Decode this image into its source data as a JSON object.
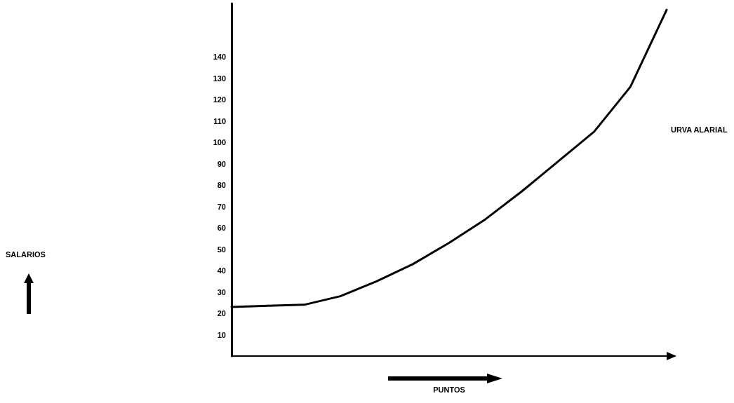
{
  "chart_data": {
    "type": "line",
    "xlabel": "PUNTOS",
    "annotations": [
      "URVA ALARIAL",
      "SALARIOS"
    ],
    "categories": [
      null,
      null,
      null,
      null,
      null,
      null,
      null,
      null,
      null,
      null,
      null,
      null,
      null
    ],
    "series": [
      {
        "color": "#000000",
        "values": [
          23,
          23.5,
          24,
          28,
          35,
          43,
          53,
          64,
          77,
          91,
          105,
          126,
          162
        ]
      }
    ],
    "ylim": [
      0,
      165
    ],
    "yticks": [
      10,
      20,
      30,
      40,
      50,
      60,
      70,
      80,
      90,
      100,
      110,
      120,
      130,
      140
    ],
    "tick_labels": "y",
    "grid": false,
    "marker": "none",
    "line_style": "solid"
  }
}
